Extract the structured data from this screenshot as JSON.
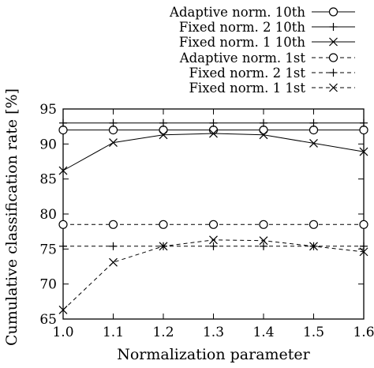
{
  "chart_data": {
    "type": "line",
    "xlabel": "Normalization parameter",
    "ylabel": "Cumulative classification rate [%]",
    "x": [
      1.0,
      1.1,
      1.2,
      1.3,
      1.4,
      1.5,
      1.6
    ],
    "xlim": [
      1.0,
      1.6
    ],
    "ylim": [
      65,
      95
    ],
    "xticks": [
      "1.0",
      "1.1",
      "1.2",
      "1.3",
      "1.4",
      "1.5",
      "1.6"
    ],
    "yticks": [
      "65",
      "70",
      "75",
      "80",
      "85",
      "90",
      "95"
    ],
    "grid": false,
    "legend_position": "top-right, outside plot",
    "series": [
      {
        "name": "Adaptive norm. 10th",
        "marker": "circle",
        "dash": "solid",
        "values": [
          92.0,
          92.0,
          92.0,
          92.0,
          92.0,
          92.0,
          92.0
        ]
      },
      {
        "name": "Fixed norm. 2 10th",
        "marker": "plus",
        "dash": "solid",
        "values": [
          93.0,
          93.0,
          93.0,
          93.0,
          93.0,
          93.0,
          93.0
        ]
      },
      {
        "name": "Fixed norm. 1 10th",
        "marker": "cross",
        "dash": "solid",
        "values": [
          86.2,
          90.2,
          91.3,
          91.5,
          91.3,
          90.1,
          88.9
        ]
      },
      {
        "name": "Adaptive norm. 1st",
        "marker": "circle",
        "dash": "dashed",
        "values": [
          78.5,
          78.5,
          78.5,
          78.5,
          78.5,
          78.5,
          78.5
        ]
      },
      {
        "name": "Fixed norm. 2 1st",
        "marker": "plus",
        "dash": "dashed",
        "values": [
          75.4,
          75.4,
          75.4,
          75.4,
          75.4,
          75.4,
          75.4
        ]
      },
      {
        "name": "Fixed norm. 1 1st",
        "marker": "cross",
        "dash": "dashed",
        "values": [
          66.3,
          73.1,
          75.4,
          76.3,
          76.2,
          75.4,
          74.6
        ]
      }
    ]
  }
}
